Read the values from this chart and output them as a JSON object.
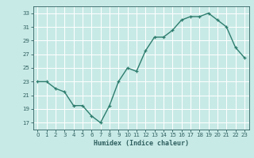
{
  "x": [
    0,
    1,
    2,
    3,
    4,
    5,
    6,
    7,
    8,
    9,
    10,
    11,
    12,
    13,
    14,
    15,
    16,
    17,
    18,
    19,
    20,
    21,
    22,
    23
  ],
  "y": [
    23,
    23,
    22,
    21.5,
    19.5,
    19.5,
    18,
    17,
    19.5,
    23,
    25,
    24.5,
    27.5,
    29.5,
    29.5,
    30.5,
    32,
    32.5,
    32.5,
    33,
    32,
    31,
    28,
    26.5
  ],
  "xlabel": "Humidex (Indice chaleur)",
  "line_color": "#2e7d6e",
  "marker": "+",
  "bg_color": "#c8eae6",
  "grid_color": "#ffffff",
  "label_color": "#2e5f5f",
  "ylim": [
    16,
    34
  ],
  "yticks": [
    17,
    19,
    21,
    23,
    25,
    27,
    29,
    31,
    33
  ],
  "xlim": [
    -0.5,
    23.5
  ],
  "xticks": [
    0,
    1,
    2,
    3,
    4,
    5,
    6,
    7,
    8,
    9,
    10,
    11,
    12,
    13,
    14,
    15,
    16,
    17,
    18,
    19,
    20,
    21,
    22,
    23
  ]
}
